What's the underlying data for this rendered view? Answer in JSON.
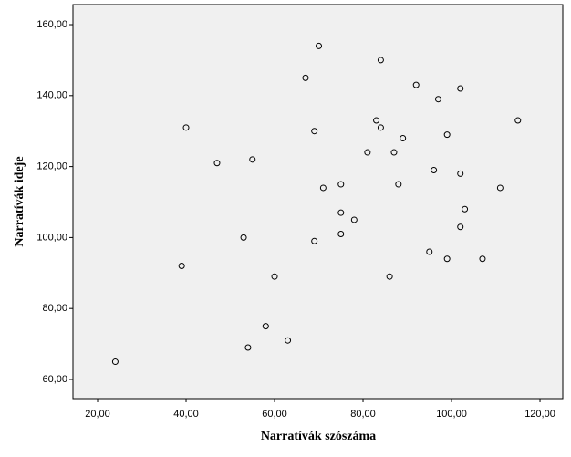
{
  "chart_data": {
    "type": "scatter",
    "x_label": "Narratívák szószáma",
    "y_label": "Narratívák ideje",
    "x": [
      70,
      84,
      67,
      92,
      102,
      97,
      83,
      84,
      115,
      40,
      69,
      99,
      89,
      81,
      87,
      47,
      55,
      96,
      102,
      75,
      88,
      71,
      111,
      103,
      75,
      78,
      102,
      75,
      53,
      69,
      95,
      99,
      107,
      39,
      60,
      86,
      58,
      63,
      54,
      24
    ],
    "values": [
      154,
      150,
      145,
      143,
      142,
      139,
      133,
      131,
      133,
      131,
      130,
      129,
      128,
      124,
      124,
      121,
      122,
      119,
      118,
      115,
      115,
      114,
      114,
      108,
      107,
      105,
      103,
      101,
      100,
      99,
      96,
      94,
      94,
      92,
      89,
      89,
      75,
      71,
      69,
      65
    ],
    "xlim": [
      14.43,
      125.15
    ],
    "ylim": [
      54.6,
      165.66
    ],
    "xticks": [
      {
        "value": 20,
        "label": "20,00"
      },
      {
        "value": 40,
        "label": "40,00"
      },
      {
        "value": 60,
        "label": "60,00"
      },
      {
        "value": 80,
        "label": "80,00"
      },
      {
        "value": 100,
        "label": "100,00"
      },
      {
        "value": 120,
        "label": "120,00"
      }
    ],
    "yticks": [
      {
        "value": 60,
        "label": "60,00"
      },
      {
        "value": 80,
        "label": "80,00"
      },
      {
        "value": 100,
        "label": "100,00"
      },
      {
        "value": 120,
        "label": "120,00"
      },
      {
        "value": 140,
        "label": "140,00"
      },
      {
        "value": 160,
        "label": "160,00"
      }
    ],
    "color": "#000000",
    "background": "#f0f0f0"
  }
}
